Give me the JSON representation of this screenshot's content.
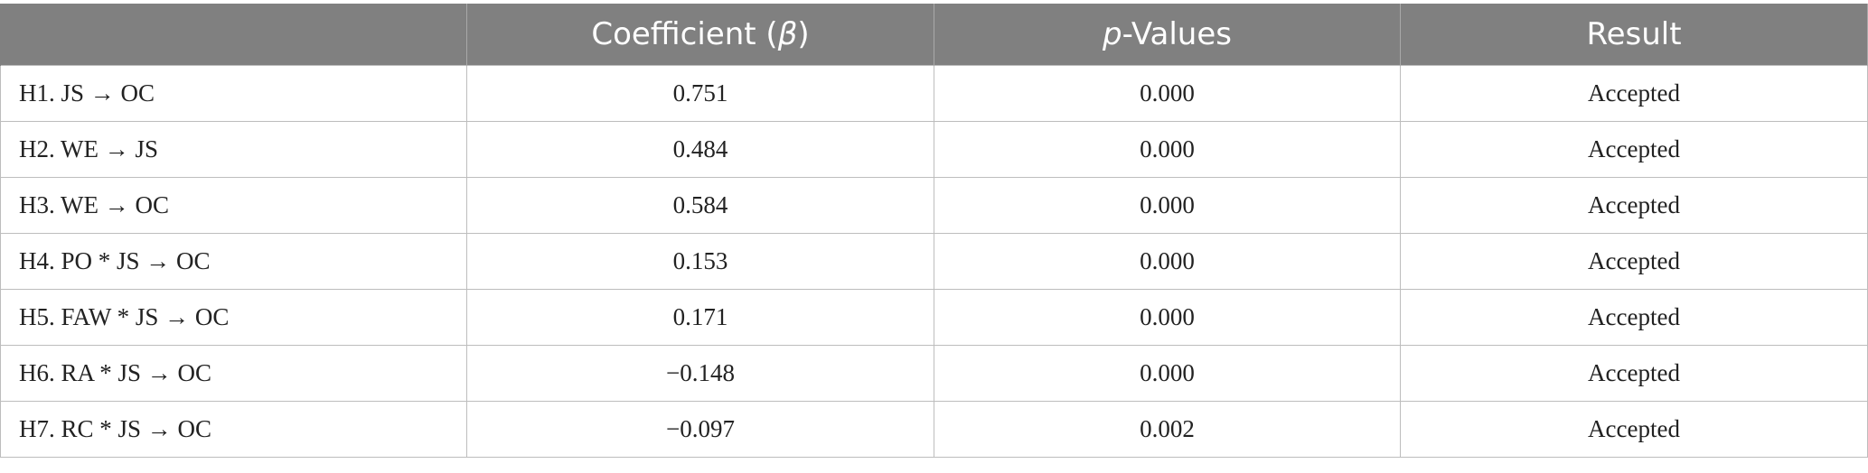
{
  "table": {
    "headers": {
      "col1": "",
      "col2_prefix": "Coefficient (",
      "col2_symbol": "β",
      "col2_suffix": ")",
      "col3_italic": "p",
      "col3_rest": "-Values",
      "col4": "Result"
    },
    "rows": [
      {
        "hypothesis": "H1. JS → OC",
        "coefficient": "0.751",
        "p_value": "0.000",
        "result": "Accepted"
      },
      {
        "hypothesis": "H2. WE → JS",
        "coefficient": "0.484",
        "p_value": "0.000",
        "result": "Accepted"
      },
      {
        "hypothesis": "H3. WE → OC",
        "coefficient": "0.584",
        "p_value": "0.000",
        "result": "Accepted"
      },
      {
        "hypothesis": "H4. PO * JS → OC",
        "coefficient": "0.153",
        "p_value": "0.000",
        "result": "Accepted"
      },
      {
        "hypothesis": "H5. FAW * JS → OC",
        "coefficient": "0.171",
        "p_value": "0.000",
        "result": "Accepted"
      },
      {
        "hypothesis": "H6. RA * JS → OC",
        "coefficient": "−0.148",
        "p_value": "0.000",
        "result": "Accepted"
      },
      {
        "hypothesis": "H7. RC * JS → OC",
        "coefficient": "−0.097",
        "p_value": "0.002",
        "result": "Accepted"
      }
    ]
  }
}
